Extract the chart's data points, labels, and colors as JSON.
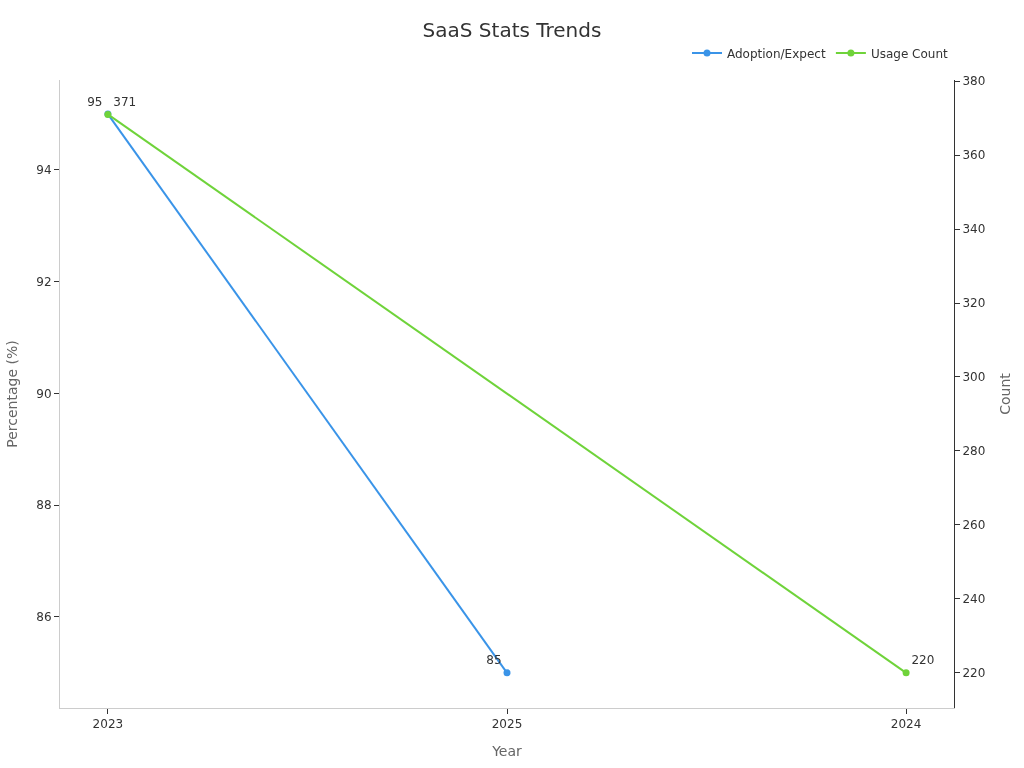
{
  "chart_data": {
    "type": "line",
    "title": "SaaS Stats Trends",
    "xlabel": "Year",
    "ylabel": "Percentage (%)",
    "y2label": "Count",
    "categories": [
      "2023",
      "2025",
      "2024"
    ],
    "series": [
      {
        "name": "Adoption/Expect",
        "color": "#3a94e8",
        "values": [
          95,
          85,
          null
        ]
      },
      {
        "name": "Usage Count",
        "color": "#6fd33a",
        "values": [
          371,
          null,
          220
        ],
        "axis": "y2"
      }
    ],
    "ylim": [
      84.37,
      95.61
    ],
    "yticks": [
      86,
      88,
      90,
      92,
      94
    ],
    "y2lim": [
      210.5,
      380.3
    ],
    "y2ticks": [
      220,
      240,
      260,
      280,
      300,
      320,
      340,
      360,
      380
    ],
    "data_labels": true,
    "legend": "top right",
    "marker": "circle",
    "line_style": "solid",
    "grid": false
  }
}
